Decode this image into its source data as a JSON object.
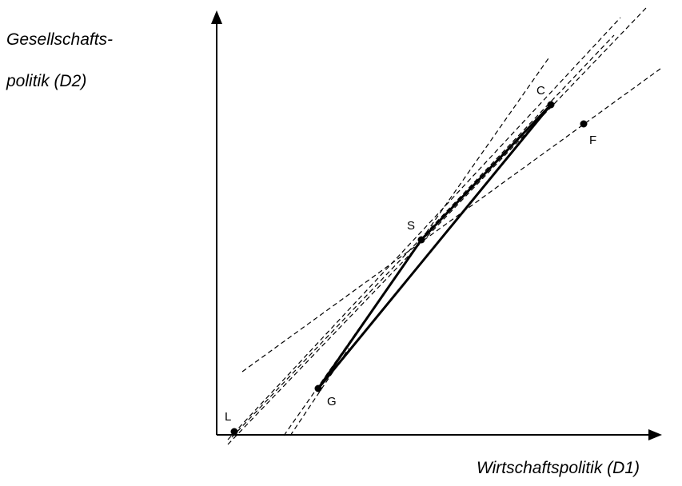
{
  "axes": {
    "y_label_line1": "Gesellschafts-",
    "y_label_line2": "politik (D2)",
    "x_label": "Wirtschaftspolitik (D1)"
  },
  "points": [
    {
      "id": "L",
      "label": "L"
    },
    {
      "id": "G",
      "label": "G"
    },
    {
      "id": "S",
      "label": "S"
    },
    {
      "id": "C",
      "label": "C"
    },
    {
      "id": "F",
      "label": "F"
    }
  ],
  "colors": {
    "ink": "#000000",
    "background": "#ffffff"
  }
}
